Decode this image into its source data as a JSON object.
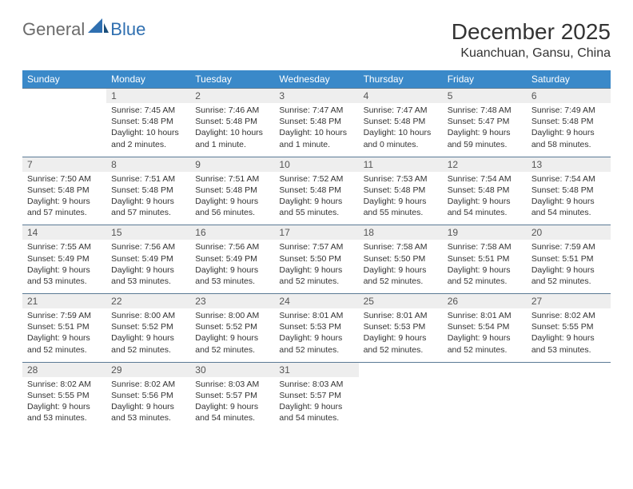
{
  "brand": {
    "part1": "General",
    "part2": "Blue"
  },
  "title": "December 2025",
  "location": "Kuanchuan, Gansu, China",
  "colors": {
    "headerBg": "#3a89c9",
    "headerText": "#ffffff",
    "dayNumBg": "#eeeeee",
    "dayNumText": "#555555",
    "rowBorder": "#5b7a95",
    "bodyText": "#333333",
    "logoGray": "#6b6b6b",
    "logoBlue": "#2f6fb0"
  },
  "weekdays": [
    "Sunday",
    "Monday",
    "Tuesday",
    "Wednesday",
    "Thursday",
    "Friday",
    "Saturday"
  ],
  "weeks": [
    [
      null,
      {
        "n": "1",
        "sr": "Sunrise: 7:45 AM",
        "ss": "Sunset: 5:48 PM",
        "dl": "Daylight: 10 hours and 2 minutes."
      },
      {
        "n": "2",
        "sr": "Sunrise: 7:46 AM",
        "ss": "Sunset: 5:48 PM",
        "dl": "Daylight: 10 hours and 1 minute."
      },
      {
        "n": "3",
        "sr": "Sunrise: 7:47 AM",
        "ss": "Sunset: 5:48 PM",
        "dl": "Daylight: 10 hours and 1 minute."
      },
      {
        "n": "4",
        "sr": "Sunrise: 7:47 AM",
        "ss": "Sunset: 5:48 PM",
        "dl": "Daylight: 10 hours and 0 minutes."
      },
      {
        "n": "5",
        "sr": "Sunrise: 7:48 AM",
        "ss": "Sunset: 5:47 PM",
        "dl": "Daylight: 9 hours and 59 minutes."
      },
      {
        "n": "6",
        "sr": "Sunrise: 7:49 AM",
        "ss": "Sunset: 5:48 PM",
        "dl": "Daylight: 9 hours and 58 minutes."
      }
    ],
    [
      {
        "n": "7",
        "sr": "Sunrise: 7:50 AM",
        "ss": "Sunset: 5:48 PM",
        "dl": "Daylight: 9 hours and 57 minutes."
      },
      {
        "n": "8",
        "sr": "Sunrise: 7:51 AM",
        "ss": "Sunset: 5:48 PM",
        "dl": "Daylight: 9 hours and 57 minutes."
      },
      {
        "n": "9",
        "sr": "Sunrise: 7:51 AM",
        "ss": "Sunset: 5:48 PM",
        "dl": "Daylight: 9 hours and 56 minutes."
      },
      {
        "n": "10",
        "sr": "Sunrise: 7:52 AM",
        "ss": "Sunset: 5:48 PM",
        "dl": "Daylight: 9 hours and 55 minutes."
      },
      {
        "n": "11",
        "sr": "Sunrise: 7:53 AM",
        "ss": "Sunset: 5:48 PM",
        "dl": "Daylight: 9 hours and 55 minutes."
      },
      {
        "n": "12",
        "sr": "Sunrise: 7:54 AM",
        "ss": "Sunset: 5:48 PM",
        "dl": "Daylight: 9 hours and 54 minutes."
      },
      {
        "n": "13",
        "sr": "Sunrise: 7:54 AM",
        "ss": "Sunset: 5:48 PM",
        "dl": "Daylight: 9 hours and 54 minutes."
      }
    ],
    [
      {
        "n": "14",
        "sr": "Sunrise: 7:55 AM",
        "ss": "Sunset: 5:49 PM",
        "dl": "Daylight: 9 hours and 53 minutes."
      },
      {
        "n": "15",
        "sr": "Sunrise: 7:56 AM",
        "ss": "Sunset: 5:49 PM",
        "dl": "Daylight: 9 hours and 53 minutes."
      },
      {
        "n": "16",
        "sr": "Sunrise: 7:56 AM",
        "ss": "Sunset: 5:49 PM",
        "dl": "Daylight: 9 hours and 53 minutes."
      },
      {
        "n": "17",
        "sr": "Sunrise: 7:57 AM",
        "ss": "Sunset: 5:50 PM",
        "dl": "Daylight: 9 hours and 52 minutes."
      },
      {
        "n": "18",
        "sr": "Sunrise: 7:58 AM",
        "ss": "Sunset: 5:50 PM",
        "dl": "Daylight: 9 hours and 52 minutes."
      },
      {
        "n": "19",
        "sr": "Sunrise: 7:58 AM",
        "ss": "Sunset: 5:51 PM",
        "dl": "Daylight: 9 hours and 52 minutes."
      },
      {
        "n": "20",
        "sr": "Sunrise: 7:59 AM",
        "ss": "Sunset: 5:51 PM",
        "dl": "Daylight: 9 hours and 52 minutes."
      }
    ],
    [
      {
        "n": "21",
        "sr": "Sunrise: 7:59 AM",
        "ss": "Sunset: 5:51 PM",
        "dl": "Daylight: 9 hours and 52 minutes."
      },
      {
        "n": "22",
        "sr": "Sunrise: 8:00 AM",
        "ss": "Sunset: 5:52 PM",
        "dl": "Daylight: 9 hours and 52 minutes."
      },
      {
        "n": "23",
        "sr": "Sunrise: 8:00 AM",
        "ss": "Sunset: 5:52 PM",
        "dl": "Daylight: 9 hours and 52 minutes."
      },
      {
        "n": "24",
        "sr": "Sunrise: 8:01 AM",
        "ss": "Sunset: 5:53 PM",
        "dl": "Daylight: 9 hours and 52 minutes."
      },
      {
        "n": "25",
        "sr": "Sunrise: 8:01 AM",
        "ss": "Sunset: 5:53 PM",
        "dl": "Daylight: 9 hours and 52 minutes."
      },
      {
        "n": "26",
        "sr": "Sunrise: 8:01 AM",
        "ss": "Sunset: 5:54 PM",
        "dl": "Daylight: 9 hours and 52 minutes."
      },
      {
        "n": "27",
        "sr": "Sunrise: 8:02 AM",
        "ss": "Sunset: 5:55 PM",
        "dl": "Daylight: 9 hours and 53 minutes."
      }
    ],
    [
      {
        "n": "28",
        "sr": "Sunrise: 8:02 AM",
        "ss": "Sunset: 5:55 PM",
        "dl": "Daylight: 9 hours and 53 minutes."
      },
      {
        "n": "29",
        "sr": "Sunrise: 8:02 AM",
        "ss": "Sunset: 5:56 PM",
        "dl": "Daylight: 9 hours and 53 minutes."
      },
      {
        "n": "30",
        "sr": "Sunrise: 8:03 AM",
        "ss": "Sunset: 5:57 PM",
        "dl": "Daylight: 9 hours and 54 minutes."
      },
      {
        "n": "31",
        "sr": "Sunrise: 8:03 AM",
        "ss": "Sunset: 5:57 PM",
        "dl": "Daylight: 9 hours and 54 minutes."
      },
      null,
      null,
      null
    ]
  ]
}
